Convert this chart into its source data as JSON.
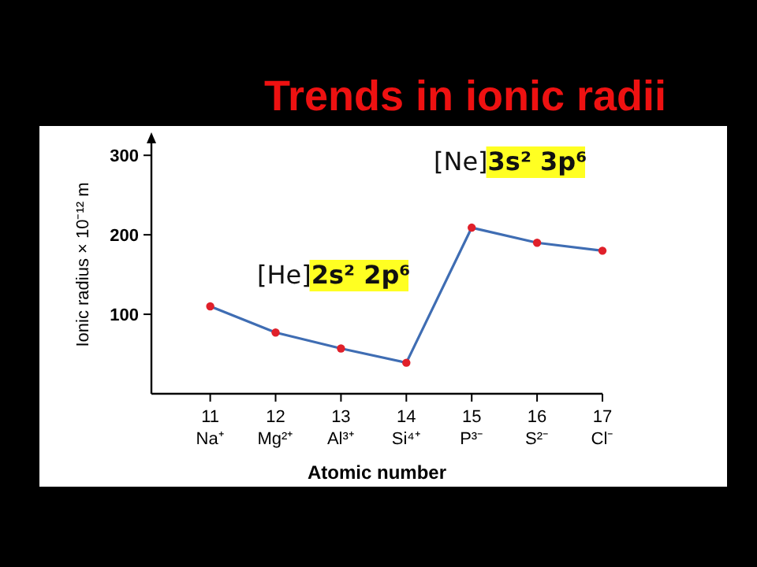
{
  "chart_data": {
    "type": "line",
    "title": "Trends in ionic radii",
    "xlabel": "Atomic number",
    "ylabel": "Ionic radius × 10⁻¹² m",
    "x": [
      11,
      12,
      13,
      14,
      15,
      16,
      17
    ],
    "series": [
      {
        "color": "#3f6db3",
        "values": [
          110,
          77,
          57,
          39,
          209,
          190,
          180
        ]
      }
    ],
    "xlim": [
      10.1,
      17
    ],
    "xticks": [
      {
        "value": 11,
        "label": "11 Na⁺"
      },
      {
        "value": 12,
        "label": "12 Mg²⁺"
      },
      {
        "value": 13,
        "label": "13 Al³⁺"
      },
      {
        "value": 14,
        "label": "14 Si⁴⁺"
      },
      {
        "value": 15,
        "label": "15 P³⁻"
      },
      {
        "value": 16,
        "label": "16 S²⁻"
      },
      {
        "value": 17,
        "label": "17 Cl⁻"
      }
    ],
    "ylim": [
      0,
      325
    ],
    "yticks": [
      100,
      200,
      300
    ],
    "marker": "circle",
    "grid": false,
    "annotations": [
      "[He]2s² 2p⁶",
      "[Ne]3s² 3p⁶"
    ]
  }
}
